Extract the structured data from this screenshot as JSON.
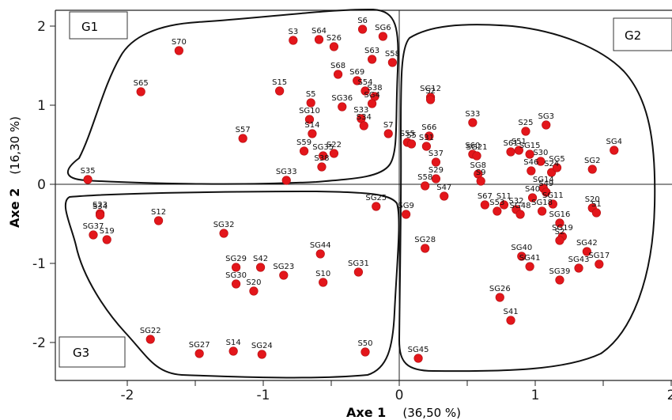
{
  "chart_data": {
    "type": "scatter",
    "xlabel": "Axe 1",
    "xlabel_pct": "(36,50 %)",
    "ylabel": "Axe 2",
    "ylabel_pct": "(16,30 %)",
    "xlim": [
      -2.6,
      2
    ],
    "ylim": [
      -2.5,
      2.2
    ],
    "xticks": [
      {
        "v": -2,
        "t": "-2"
      },
      {
        "v": -1.5,
        "t": "-1.5"
      },
      {
        "v": -1,
        "t": "-1"
      },
      {
        "v": -0.5,
        "t": "-0.5"
      },
      {
        "v": 0,
        "t": "0"
      },
      {
        "v": 0.5,
        "t": "0.5"
      },
      {
        "v": 1,
        "t": "1"
      },
      {
        "v": 1.5,
        "t": "1.5"
      },
      {
        "v": 2,
        "t": "2"
      }
    ],
    "yticks": [
      {
        "v": 2,
        "t": "2"
      },
      {
        "v": 1,
        "t": "1"
      },
      {
        "v": 0,
        "t": "0"
      },
      {
        "v": -1,
        "t": "-1"
      },
      {
        "v": -2,
        "t": "-2"
      }
    ],
    "point_color": "#e3161b",
    "groups": [
      {
        "name": "G1"
      },
      {
        "name": "G2"
      },
      {
        "name": "G3"
      }
    ],
    "points": [
      {
        "label": "S70",
        "x": -1.62,
        "y": 1.69
      },
      {
        "label": "S65",
        "x": -1.9,
        "y": 1.17
      },
      {
        "label": "S35",
        "x": -2.29,
        "y": 0.06
      },
      {
        "label": "S3",
        "x": -0.78,
        "y": 1.82
      },
      {
        "label": "S64",
        "x": -0.59,
        "y": 1.83
      },
      {
        "label": "S26",
        "x": -0.48,
        "y": 1.74
      },
      {
        "label": "S6",
        "x": -0.27,
        "y": 1.96
      },
      {
        "label": "SG6",
        "x": -0.12,
        "y": 1.87
      },
      {
        "label": "S63",
        "x": -0.2,
        "y": 1.58
      },
      {
        "label": "S58",
        "x": -0.05,
        "y": 1.54
      },
      {
        "label": "S68",
        "x": -0.45,
        "y": 1.39
      },
      {
        "label": "S69",
        "x": -0.31,
        "y": 1.31
      },
      {
        "label": "S54",
        "x": -0.25,
        "y": 1.18
      },
      {
        "label": "S38",
        "x": -0.18,
        "y": 1.11
      },
      {
        "label": "SG4",
        "x": -0.2,
        "y": 1.02
      },
      {
        "label": "S15",
        "x": -0.88,
        "y": 1.18
      },
      {
        "label": "S5",
        "x": -0.65,
        "y": 1.03
      },
      {
        "label": "SG36",
        "x": -0.42,
        "y": 0.98
      },
      {
        "label": "SG10",
        "x": -0.66,
        "y": 0.82
      },
      {
        "label": "S14",
        "x": -0.64,
        "y": 0.64
      },
      {
        "label": "S33",
        "x": -0.28,
        "y": 0.83
      },
      {
        "label": "S34",
        "x": -0.26,
        "y": 0.74
      },
      {
        "label": "S7",
        "x": -0.08,
        "y": 0.64
      },
      {
        "label": "S57",
        "x": -1.15,
        "y": 0.58
      },
      {
        "label": "S59",
        "x": -0.7,
        "y": 0.42
      },
      {
        "label": "SG35",
        "x": -0.56,
        "y": 0.36
      },
      {
        "label": "S22",
        "x": -0.48,
        "y": 0.39
      },
      {
        "label": "S38",
        "x": -0.57,
        "y": 0.22
      },
      {
        "label": "SG33",
        "x": -0.83,
        "y": 0.05
      },
      {
        "label": "SG12",
        "x": 0.23,
        "y": 1.1
      },
      {
        "label": "S2",
        "x": 0.23,
        "y": 1.07
      },
      {
        "label": "S33",
        "x": 0.54,
        "y": 0.78
      },
      {
        "label": "SG3",
        "x": 1.08,
        "y": 0.75
      },
      {
        "label": "S25",
        "x": 0.93,
        "y": 0.67
      },
      {
        "label": "S66",
        "x": 0.22,
        "y": 0.61
      },
      {
        "label": "S55",
        "x": 0.06,
        "y": 0.53
      },
      {
        "label": "S5",
        "x": 0.09,
        "y": 0.51
      },
      {
        "label": "S31",
        "x": 0.2,
        "y": 0.48
      },
      {
        "label": "SG4",
        "x": 1.58,
        "y": 0.43
      },
      {
        "label": "S60",
        "x": 0.54,
        "y": 0.38
      },
      {
        "label": "SG21",
        "x": 0.57,
        "y": 0.36
      },
      {
        "label": "S61",
        "x": 0.82,
        "y": 0.41
      },
      {
        "label": "S51",
        "x": 0.88,
        "y": 0.43
      },
      {
        "label": "SG15",
        "x": 0.96,
        "y": 0.38
      },
      {
        "label": "S37",
        "x": 0.27,
        "y": 0.28
      },
      {
        "label": "S30",
        "x": 1.04,
        "y": 0.29
      },
      {
        "label": "S24",
        "x": 1.12,
        "y": 0.15
      },
      {
        "label": "SG5",
        "x": 1.16,
        "y": 0.21
      },
      {
        "label": "SG2",
        "x": 1.42,
        "y": 0.19
      },
      {
        "label": "S46",
        "x": 0.97,
        "y": 0.17
      },
      {
        "label": "S29",
        "x": 0.27,
        "y": 0.07
      },
      {
        "label": "SG8",
        "x": 0.58,
        "y": 0.13
      },
      {
        "label": "S9",
        "x": 0.6,
        "y": 0.04
      },
      {
        "label": "S58",
        "x": 0.19,
        "y": -0.02
      },
      {
        "label": "S47",
        "x": 0.33,
        "y": -0.15
      },
      {
        "label": "SG14",
        "x": 1.06,
        "y": -0.05
      },
      {
        "label": "S40",
        "x": 0.98,
        "y": -0.17
      },
      {
        "label": "S49",
        "x": 1.08,
        "y": -0.1
      },
      {
        "label": "SG11",
        "x": 1.13,
        "y": -0.25
      },
      {
        "label": "S67",
        "x": 0.63,
        "y": -0.26
      },
      {
        "label": "S11",
        "x": 0.77,
        "y": -0.26
      },
      {
        "label": "S32",
        "x": 0.86,
        "y": -0.32
      },
      {
        "label": "S53",
        "x": 0.72,
        "y": -0.34
      },
      {
        "label": "SG18",
        "x": 1.05,
        "y": -0.34
      },
      {
        "label": "S20",
        "x": 1.42,
        "y": -0.3
      },
      {
        "label": "S1",
        "x": 1.45,
        "y": -0.36
      },
      {
        "label": "SG48",
        "x": 0.89,
        "y": -0.38
      },
      {
        "label": "SG16",
        "x": 1.18,
        "y": -0.49
      },
      {
        "label": "SG19",
        "x": 1.2,
        "y": -0.66
      },
      {
        "label": "S2",
        "x": 1.18,
        "y": -0.71
      },
      {
        "label": "SG9",
        "x": 0.05,
        "y": -0.38
      },
      {
        "label": "SG28",
        "x": 0.19,
        "y": -0.81
      },
      {
        "label": "SG40",
        "x": 0.9,
        "y": -0.91
      },
      {
        "label": "SG41",
        "x": 0.96,
        "y": -1.04
      },
      {
        "label": "SG42",
        "x": 1.38,
        "y": -0.85
      },
      {
        "label": "SG17",
        "x": 1.47,
        "y": -1.01
      },
      {
        "label": "SG43",
        "x": 1.32,
        "y": -1.06
      },
      {
        "label": "SG39",
        "x": 1.18,
        "y": -1.21
      },
      {
        "label": "SG26",
        "x": 0.74,
        "y": -1.43
      },
      {
        "label": "S41",
        "x": 0.82,
        "y": -1.72
      },
      {
        "label": "SG45",
        "x": 0.14,
        "y": -2.2
      },
      {
        "label": "S23",
        "x": -2.2,
        "y": -0.37
      },
      {
        "label": "S34",
        "x": -2.2,
        "y": -0.39
      },
      {
        "label": "SG37",
        "x": -2.25,
        "y": -0.64
      },
      {
        "label": "S19",
        "x": -2.15,
        "y": -0.7
      },
      {
        "label": "S12",
        "x": -1.77,
        "y": -0.46
      },
      {
        "label": "SG32",
        "x": -1.29,
        "y": -0.62
      },
      {
        "label": "SG25",
        "x": -0.17,
        "y": -0.28
      },
      {
        "label": "SG44",
        "x": -0.58,
        "y": -0.88
      },
      {
        "label": "SG29",
        "x": -1.2,
        "y": -1.05
      },
      {
        "label": "S42",
        "x": -1.02,
        "y": -1.05
      },
      {
        "label": "SG23",
        "x": -0.85,
        "y": -1.15
      },
      {
        "label": "SG31",
        "x": -0.3,
        "y": -1.11
      },
      {
        "label": "SG30",
        "x": -1.2,
        "y": -1.26
      },
      {
        "label": "S20",
        "x": -1.07,
        "y": -1.35
      },
      {
        "label": "S10",
        "x": -0.56,
        "y": -1.24
      },
      {
        "label": "SG22",
        "x": -1.83,
        "y": -1.96
      },
      {
        "label": "SG27",
        "x": -1.47,
        "y": -2.14
      },
      {
        "label": "S14",
        "x": -1.22,
        "y": -2.11
      },
      {
        "label": "SG24",
        "x": -1.01,
        "y": -2.15
      },
      {
        "label": "S50",
        "x": -0.25,
        "y": -2.12
      }
    ]
  }
}
